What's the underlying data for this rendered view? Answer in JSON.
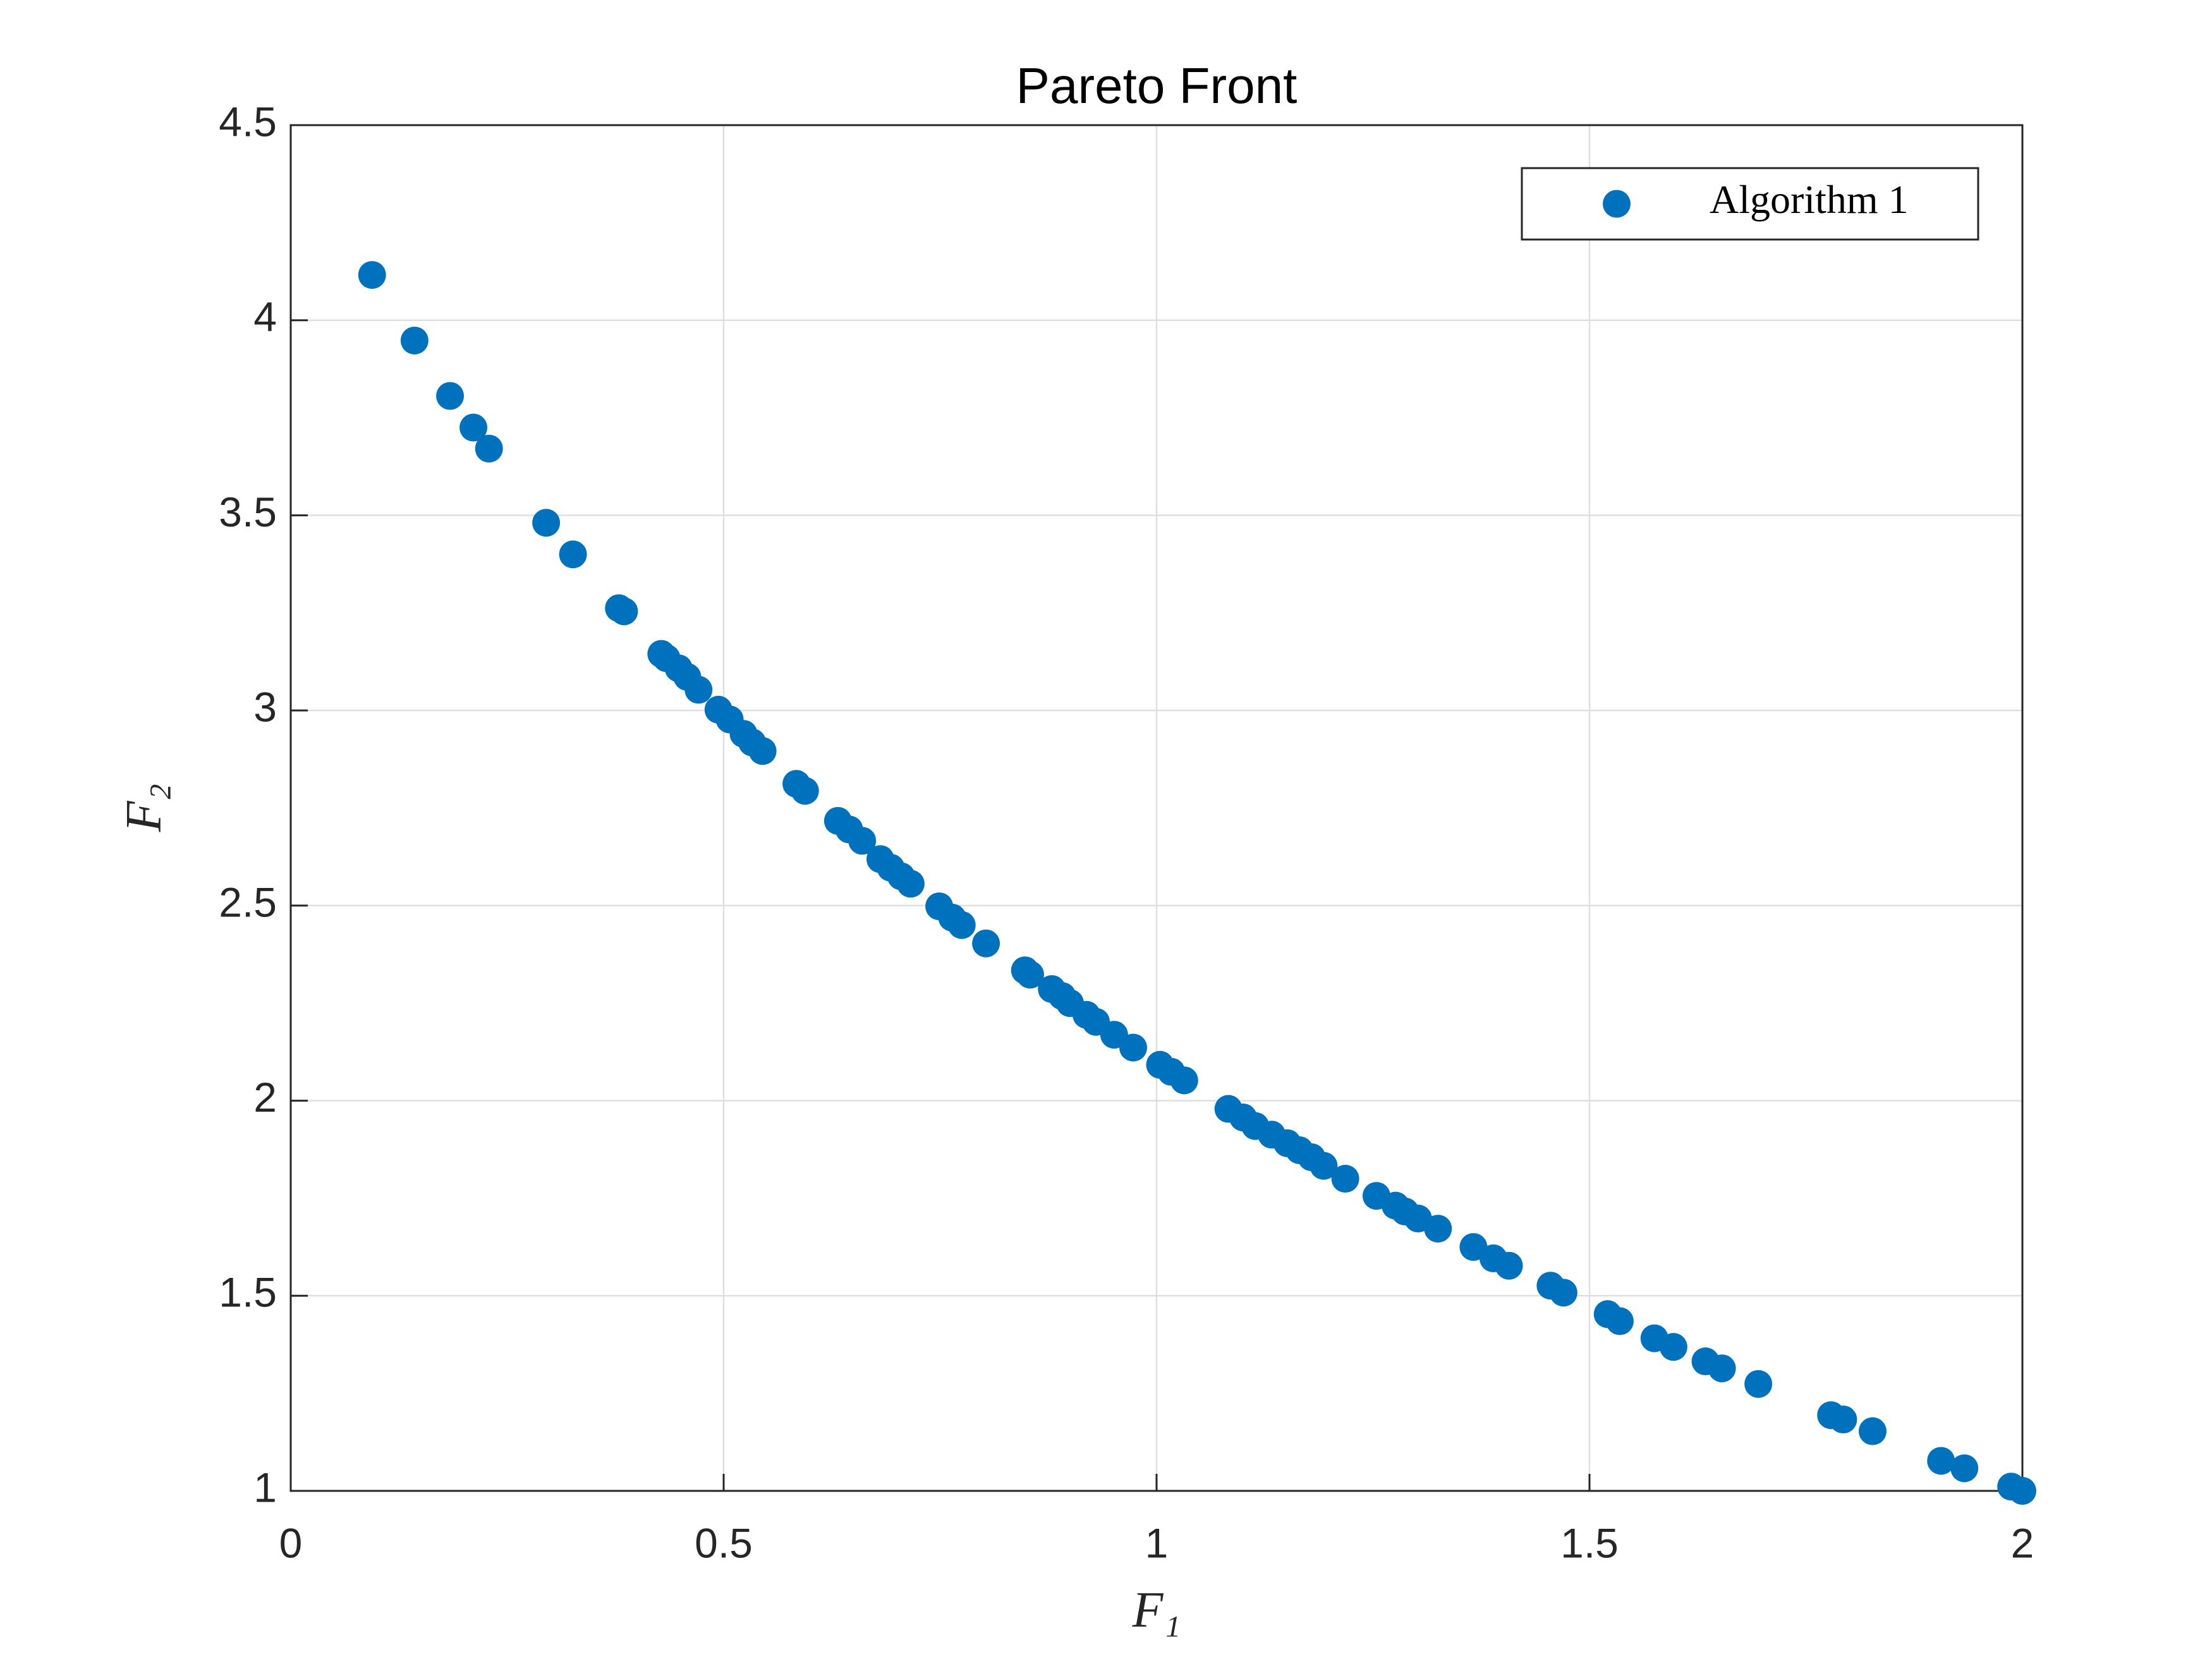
{
  "chart_data": {
    "type": "scatter",
    "title": "Pareto Front",
    "x_label": "F₁",
    "y_label": "F₂",
    "xlim": [
      0,
      2
    ],
    "ylim": [
      1,
      4.5
    ],
    "xticks": [
      0,
      0.5,
      1,
      1.5,
      2
    ],
    "yticks": [
      1,
      1.5,
      2,
      2.5,
      3,
      3.5,
      4,
      4.5
    ],
    "grid": true,
    "legend": "upper right",
    "series": [
      {
        "name": "Algorithm 1",
        "color": "#0072BD",
        "x": [
          0.094,
          0.143,
          0.184,
          0.211,
          0.229,
          0.295,
          0.326,
          0.379,
          0.385,
          0.428,
          0.434,
          0.448,
          0.458,
          0.471,
          0.494,
          0.507,
          0.523,
          0.533,
          0.545,
          0.584,
          0.594,
          0.632,
          0.645,
          0.66,
          0.681,
          0.693,
          0.705,
          0.716,
          0.749,
          0.764,
          0.775,
          0.803,
          0.848,
          0.854,
          0.879,
          0.891,
          0.9,
          0.919,
          0.93,
          0.951,
          0.973,
          1.004,
          1.017,
          1.032,
          1.083,
          1.1,
          1.114,
          1.133,
          1.151,
          1.165,
          1.179,
          1.193,
          1.218,
          1.254,
          1.276,
          1.287,
          1.302,
          1.325,
          1.366,
          1.389,
          1.407,
          1.455,
          1.47,
          1.521,
          1.535,
          1.575,
          1.597,
          1.634,
          1.653,
          1.695,
          1.779,
          1.793,
          1.827,
          1.906,
          1.933,
          1.987,
          2.0
        ],
        "values": [
          4.116,
          3.948,
          3.806,
          3.725,
          3.671,
          3.481,
          3.4,
          3.262,
          3.254,
          3.145,
          3.134,
          3.108,
          3.086,
          3.053,
          3.002,
          2.977,
          2.94,
          2.918,
          2.896,
          2.812,
          2.794,
          2.717,
          2.695,
          2.666,
          2.619,
          2.597,
          2.575,
          2.556,
          2.498,
          2.469,
          2.45,
          2.403,
          2.334,
          2.323,
          2.286,
          2.268,
          2.25,
          2.22,
          2.202,
          2.169,
          2.136,
          2.092,
          2.074,
          2.052,
          1.979,
          1.957,
          1.935,
          1.913,
          1.891,
          1.873,
          1.855,
          1.833,
          1.8,
          1.756,
          1.731,
          1.716,
          1.698,
          1.672,
          1.625,
          1.596,
          1.577,
          1.526,
          1.508,
          1.453,
          1.435,
          1.391,
          1.369,
          1.332,
          1.314,
          1.274,
          1.194,
          1.183,
          1.153,
          1.077,
          1.058,
          1.011,
          1.0
        ]
      }
    ]
  }
}
